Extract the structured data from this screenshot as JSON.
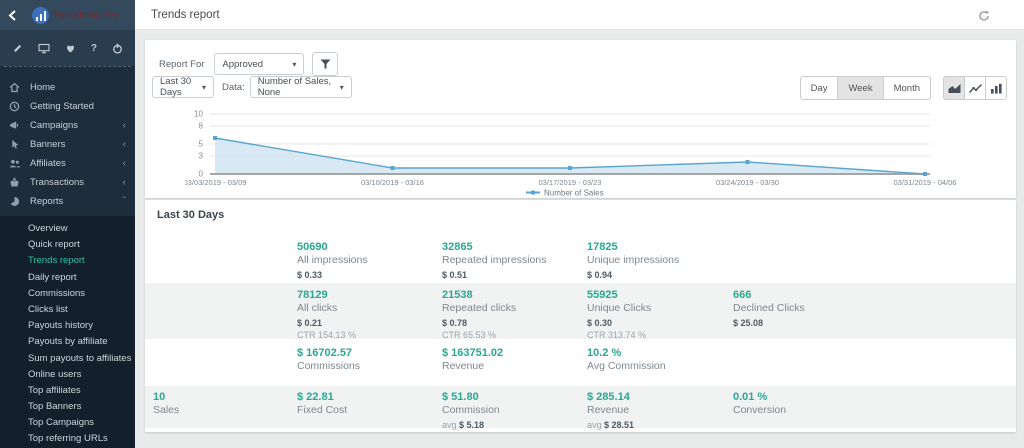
{
  "brand": {
    "name": "Post Affiliate Pro"
  },
  "topbar": {
    "title": "Trends report"
  },
  "icons": {
    "caret": "▾",
    "chevron_collapsed": "‹",
    "chevron_expanded": "ˇ"
  },
  "sidebar": {
    "items": [
      {
        "label": "Home",
        "icon": "home-icon"
      },
      {
        "label": "Getting Started",
        "icon": "clock-icon"
      },
      {
        "label": "Campaigns",
        "icon": "megaphone-icon",
        "chevron": "‹"
      },
      {
        "label": "Banners",
        "icon": "pointer-icon",
        "chevron": "‹"
      },
      {
        "label": "Affiliates",
        "icon": "users-icon",
        "chevron": "‹"
      },
      {
        "label": "Transactions",
        "icon": "basket-icon",
        "chevron": "‹"
      },
      {
        "label": "Reports",
        "icon": "pie-icon",
        "chevron": "ˇ",
        "expanded": true
      }
    ],
    "submenu": [
      {
        "label": "Overview"
      },
      {
        "label": "Quick report"
      },
      {
        "label": "Trends report",
        "active": true
      },
      {
        "label": "Daily report"
      },
      {
        "label": "Commissions"
      },
      {
        "label": "Clicks list"
      },
      {
        "label": "Payouts history"
      },
      {
        "label": "Payouts by affiliate"
      },
      {
        "label": "Sum payouts to affiliates"
      },
      {
        "label": "Online users"
      },
      {
        "label": "Top affiliates"
      },
      {
        "label": "Top Banners"
      },
      {
        "label": "Top Campaigns"
      },
      {
        "label": "Top referring URLs"
      }
    ]
  },
  "filters": {
    "report_for_label": "Report For",
    "report_for_value": "Approved",
    "period_value": "Last 30 Days",
    "data_label": "Data:",
    "data_value": "Number of Sales, None",
    "granularity": {
      "day": "Day",
      "week": "Week",
      "month": "Month",
      "selected": "Week"
    }
  },
  "chart_data": {
    "type": "area",
    "series": [
      {
        "name": "Number of Sales",
        "values": [
          6,
          1,
          1,
          2,
          0
        ]
      }
    ],
    "categories": [
      "03/03/2019 - 03/09",
      "03/10/2019 - 03/16",
      "03/17/2019 - 03/23",
      "03/24/2019 - 03/30",
      "03/31/2019 - 04/06"
    ],
    "yticks": [
      0,
      3,
      5,
      8,
      10
    ],
    "ylim": [
      0,
      10
    ],
    "grid": true,
    "legend_position": "bottom-center",
    "line_color": "#58a5cf",
    "fill_color": "#cfe4f1"
  },
  "stats": {
    "title": "Last 30 Days",
    "rows": [
      {
        "cells": [
          {
            "value": "50690",
            "label": "All impressions",
            "money": "$ 0.33"
          },
          {
            "value": "32865",
            "label": "Repeated impressions",
            "money": "$ 0.51"
          },
          {
            "value": "17825",
            "label": "Unique impressions",
            "money": "$ 0.94"
          }
        ]
      },
      {
        "cells": [
          {
            "value": "78129",
            "label": "All clicks",
            "money": "$ 0.21",
            "ctr": "CTR 154.13 %"
          },
          {
            "value": "21538",
            "label": "Repeated clicks",
            "money": "$ 0.78",
            "ctr": "CTR 65.53 %"
          },
          {
            "value": "55925",
            "label": "Unique Clicks",
            "money": "$ 0.30",
            "ctr": "CTR 313.74 %"
          },
          {
            "value": "666",
            "label": "Declined Clicks",
            "money": "$ 25.08"
          }
        ]
      },
      {
        "cells": [
          {
            "value": "$ 16702.57",
            "label": "Commissions"
          },
          {
            "value": "$ 163751.02",
            "label": "Revenue"
          },
          {
            "value": "10.2 %",
            "label": "Avg Commission"
          }
        ]
      },
      {
        "cells": [
          {
            "value": "10",
            "label": "Sales"
          },
          {
            "value": "$ 22.81",
            "label": "Fixed Cost"
          },
          {
            "value": "$ 51.80",
            "label": "Commission",
            "avg_label": "avg",
            "avg_value": "$ 5.18"
          },
          {
            "value": "$ 285.14",
            "label": "Revenue",
            "avg_label": "avg",
            "avg_value": "$ 28.51"
          },
          {
            "value": "0.01 %",
            "label": "Conversion"
          }
        ]
      }
    ]
  },
  "accent": {
    "teal": "#2aa791",
    "blue": "#58a5cf"
  }
}
